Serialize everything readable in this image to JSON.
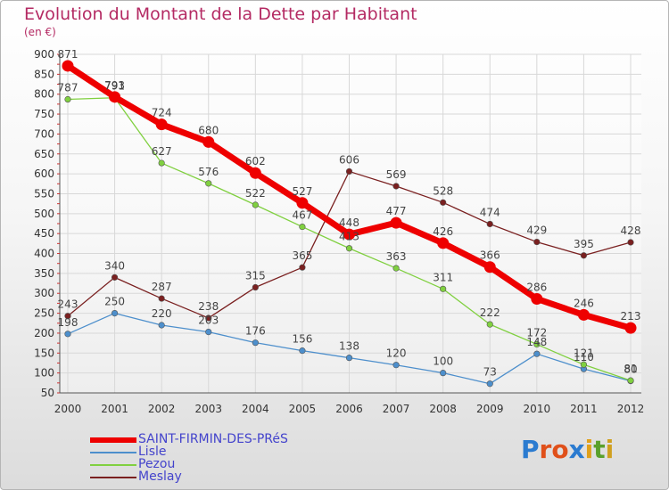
{
  "title": "Evolution du Montant de la Dette par Habitant",
  "unit_label": "(en €)",
  "logo": {
    "letters": [
      "P",
      "r",
      "o",
      "x",
      "i",
      "t",
      "i"
    ],
    "colors": [
      "#2b7bd0",
      "#e0501a",
      "#e0501a",
      "#2b7bd0",
      "#e0a01a",
      "#5aa02c",
      "#d0a020"
    ]
  },
  "chart_data": {
    "type": "line",
    "title": "Evolution du Montant de la Dette par Habitant",
    "ylabel": "(en €)",
    "xlabel": "",
    "categories": [
      "2000",
      "2001",
      "2002",
      "2003",
      "2004",
      "2005",
      "2006",
      "2007",
      "2008",
      "2009",
      "2010",
      "2011",
      "2012"
    ],
    "ylim": [
      50,
      900
    ],
    "yticks": [
      50,
      100,
      150,
      200,
      250,
      300,
      350,
      400,
      450,
      500,
      550,
      600,
      650,
      700,
      750,
      800,
      850,
      900
    ],
    "grid": true,
    "legend": "bottom-left",
    "series": [
      {
        "name": "SAINT-FIRMIN-DES-PRéS",
        "color": "#ee0000",
        "values": [
          871,
          793,
          724,
          680,
          602,
          527,
          448,
          477,
          426,
          366,
          286,
          246,
          213
        ]
      },
      {
        "name": "Lisle",
        "color": "#4d8fcc",
        "values": [
          198,
          250,
          220,
          203,
          176,
          156,
          138,
          120,
          100,
          73,
          148,
          110,
          80
        ]
      },
      {
        "name": "Pezou",
        "color": "#80d040",
        "values": [
          787,
          791,
          627,
          576,
          522,
          467,
          413,
          363,
          311,
          222,
          172,
          121,
          81
        ]
      },
      {
        "name": "Meslay",
        "color": "#7a2020",
        "values": [
          243,
          340,
          287,
          238,
          315,
          365,
          606,
          569,
          528,
          474,
          429,
          395,
          428
        ]
      }
    ]
  }
}
